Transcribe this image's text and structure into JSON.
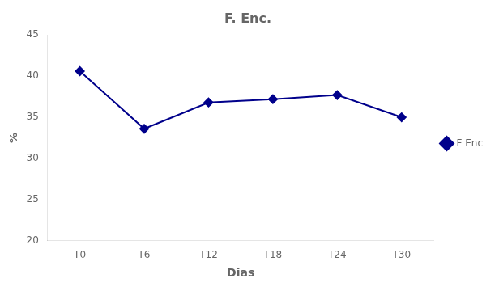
{
  "chart_data": {
    "type": "line",
    "title": "F. Enc.",
    "xlabel": "Dias",
    "ylabel": "%",
    "categories": [
      "T0",
      "T6",
      "T12",
      "T18",
      "T24",
      "T30"
    ],
    "series": [
      {
        "name": "F Enc",
        "color": "#00008B",
        "marker": "diamond",
        "values": [
          40.6,
          33.6,
          36.8,
          37.2,
          37.7,
          35.0
        ]
      }
    ],
    "ylim": [
      20,
      45
    ],
    "yticks": [
      20,
      25,
      30,
      35,
      40,
      45
    ],
    "grid": false,
    "legend": "right"
  }
}
